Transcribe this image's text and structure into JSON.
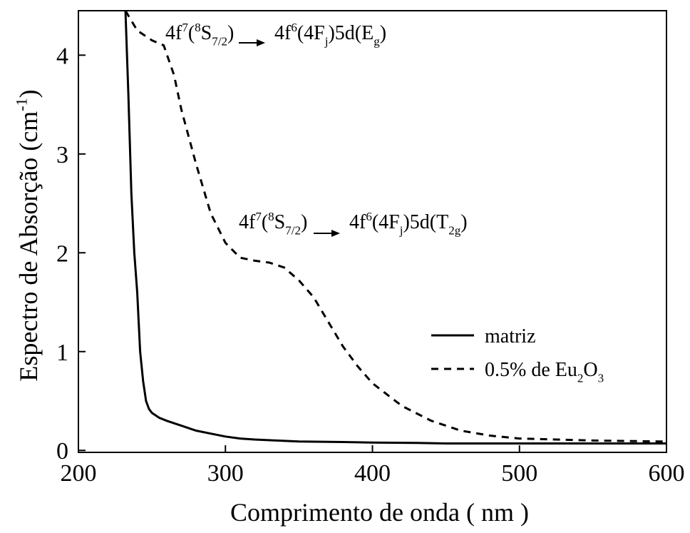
{
  "chart_data": {
    "type": "line",
    "x_label": "Comprimento de onda ( nm )",
    "y_label": [
      {
        "t": "Espectro de Absorção (cm"
      },
      {
        "sup": "-1"
      },
      {
        "t": ")"
      }
    ],
    "xlim": [
      200,
      600
    ],
    "ylim": [
      -0.02,
      4.45
    ],
    "xticks": [
      200,
      300,
      400,
      500,
      600
    ],
    "yticks": [
      0,
      1,
      2,
      3,
      4
    ],
    "series": [
      {
        "name": [
          {
            "t": "matriz"
          }
        ],
        "color": "#000000",
        "dash": "solid",
        "x": [
          232,
          234,
          236,
          238,
          240,
          242,
          244,
          246,
          248,
          250,
          255,
          260,
          270,
          280,
          290,
          300,
          310,
          320,
          335,
          350,
          380,
          400,
          430,
          450,
          500,
          550,
          600
        ],
        "values": [
          4.45,
          3.6,
          2.6,
          2.0,
          1.6,
          1.0,
          0.7,
          0.5,
          0.42,
          0.38,
          0.33,
          0.3,
          0.25,
          0.2,
          0.17,
          0.14,
          0.12,
          0.11,
          0.1,
          0.09,
          0.085,
          0.08,
          0.075,
          0.07,
          0.07,
          0.07,
          0.07
        ]
      },
      {
        "name": [
          {
            "t": "0.5%  de Eu"
          },
          {
            "sub": "2"
          },
          {
            "t": "O"
          },
          {
            "sub": "3"
          }
        ],
        "color": "#000000",
        "dash": "dashed",
        "x": [
          232,
          240,
          250,
          258,
          265,
          270,
          280,
          290,
          300,
          310,
          320,
          330,
          340,
          350,
          360,
          370,
          380,
          390,
          400,
          420,
          440,
          460,
          480,
          500,
          550,
          600
        ],
        "values": [
          4.45,
          4.25,
          4.15,
          4.1,
          3.8,
          3.45,
          2.9,
          2.4,
          2.1,
          1.95,
          1.92,
          1.9,
          1.85,
          1.72,
          1.55,
          1.3,
          1.05,
          0.85,
          0.68,
          0.45,
          0.3,
          0.2,
          0.15,
          0.12,
          0.1,
          0.09
        ]
      }
    ],
    "annotations": [
      {
        "from": [
          {
            "t": "4f"
          },
          {
            "sup": "7"
          },
          {
            "t": "("
          },
          {
            "sup": "8"
          },
          {
            "t": "S"
          },
          {
            "sub": "7/2"
          },
          {
            "t": ")"
          }
        ],
        "to": [
          {
            "t": "4f"
          },
          {
            "sup": "6"
          },
          {
            "t": "(4F"
          },
          {
            "sub": "j"
          },
          {
            "t": ")5d(E"
          },
          {
            "sub": "g"
          },
          {
            "t": ")"
          }
        ]
      },
      {
        "from": [
          {
            "t": "4f"
          },
          {
            "sup": "7"
          },
          {
            "t": "("
          },
          {
            "sup": "8"
          },
          {
            "t": "S"
          },
          {
            "sub": "7/2"
          },
          {
            "t": ")"
          }
        ],
        "to": [
          {
            "t": "4f"
          },
          {
            "sup": "6"
          },
          {
            "t": "(4F"
          },
          {
            "sub": "j"
          },
          {
            "t": ")5d(T"
          },
          {
            "sub": "2g"
          },
          {
            "t": ")"
          }
        ]
      }
    ]
  }
}
